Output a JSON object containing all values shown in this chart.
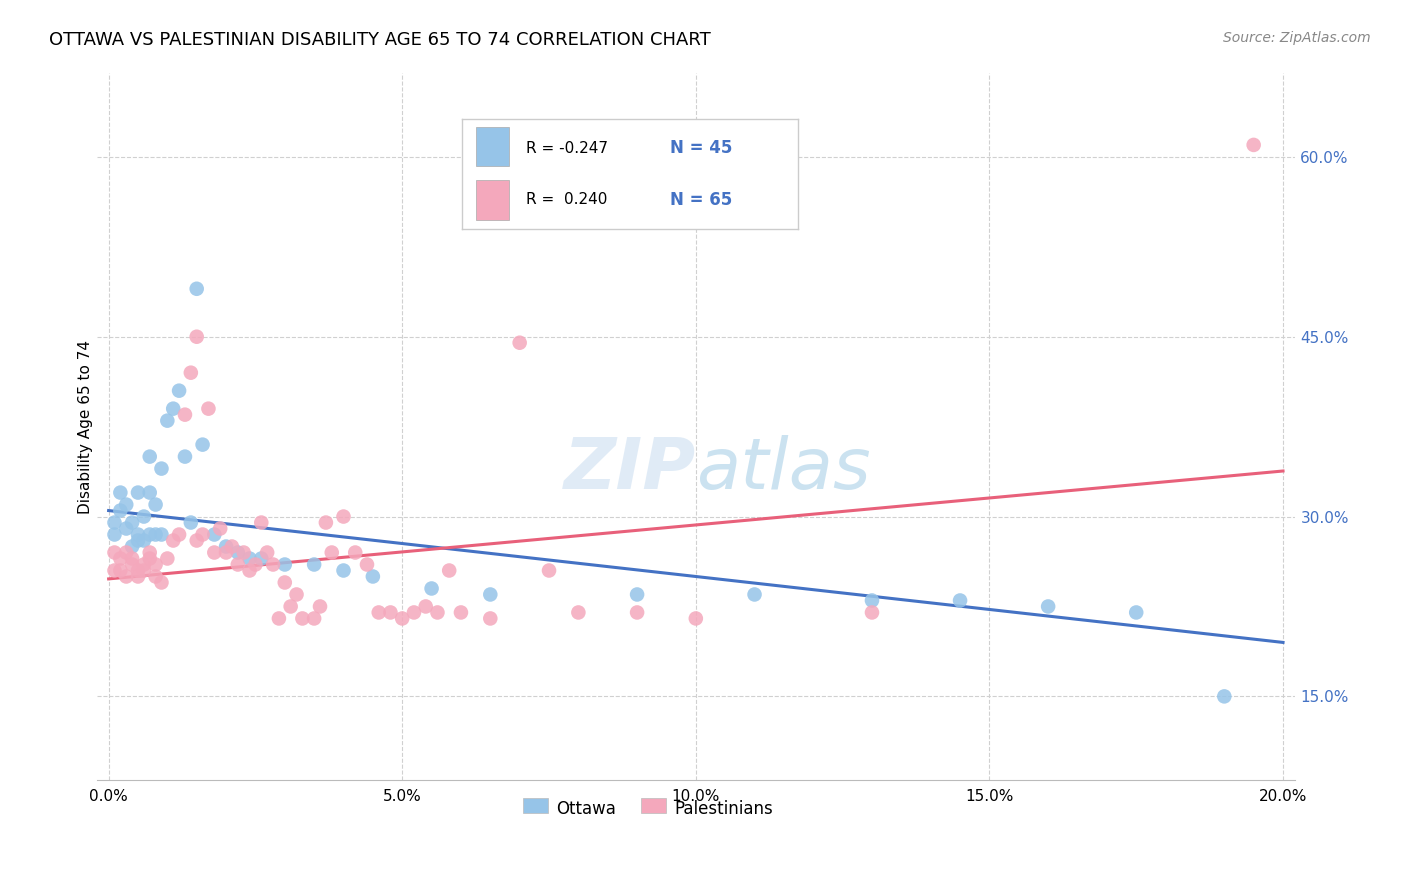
{
  "title": "OTTAWA VS PALESTINIAN DISABILITY AGE 65 TO 74 CORRELATION CHART",
  "source": "Source: ZipAtlas.com",
  "ylabel": "Disability Age 65 to 74",
  "xlim": [
    -0.002,
    0.202
  ],
  "ylim": [
    0.08,
    0.67
  ],
  "xticks": [
    0.0,
    0.05,
    0.1,
    0.15,
    0.2
  ],
  "ytick_vals": [
    0.15,
    0.3,
    0.45,
    0.6
  ],
  "ytick_labels": [
    "15.0%",
    "30.0%",
    "45.0%",
    "60.0%"
  ],
  "xtick_labels": [
    "0.0%",
    "5.0%",
    "10.0%",
    "15.0%",
    "20.0%"
  ],
  "ottawa_color": "#96C4E8",
  "palestinian_color": "#F4A8BC",
  "trend_ottawa_color": "#4472C4",
  "trend_palestinian_color": "#E8607A",
  "background_color": "#FFFFFF",
  "grid_color": "#D0D0D0",
  "ottawa_x": [
    0.001,
    0.001,
    0.002,
    0.002,
    0.003,
    0.003,
    0.004,
    0.004,
    0.005,
    0.005,
    0.005,
    0.006,
    0.006,
    0.007,
    0.007,
    0.007,
    0.008,
    0.008,
    0.009,
    0.009,
    0.01,
    0.011,
    0.012,
    0.013,
    0.014,
    0.015,
    0.016,
    0.018,
    0.02,
    0.022,
    0.024,
    0.026,
    0.03,
    0.035,
    0.04,
    0.045,
    0.055,
    0.065,
    0.09,
    0.11,
    0.13,
    0.145,
    0.16,
    0.175,
    0.19
  ],
  "ottawa_y": [
    0.295,
    0.285,
    0.305,
    0.32,
    0.31,
    0.29,
    0.295,
    0.275,
    0.285,
    0.28,
    0.32,
    0.28,
    0.3,
    0.285,
    0.35,
    0.32,
    0.31,
    0.285,
    0.285,
    0.34,
    0.38,
    0.39,
    0.405,
    0.35,
    0.295,
    0.49,
    0.36,
    0.285,
    0.275,
    0.27,
    0.265,
    0.265,
    0.26,
    0.26,
    0.255,
    0.25,
    0.24,
    0.235,
    0.235,
    0.235,
    0.23,
    0.23,
    0.225,
    0.22,
    0.15
  ],
  "palestinian_x": [
    0.001,
    0.001,
    0.002,
    0.002,
    0.003,
    0.003,
    0.004,
    0.004,
    0.005,
    0.005,
    0.006,
    0.006,
    0.007,
    0.007,
    0.008,
    0.008,
    0.009,
    0.01,
    0.011,
    0.012,
    0.013,
    0.014,
    0.015,
    0.015,
    0.016,
    0.017,
    0.018,
    0.019,
    0.02,
    0.021,
    0.022,
    0.023,
    0.024,
    0.025,
    0.026,
    0.027,
    0.028,
    0.029,
    0.03,
    0.031,
    0.032,
    0.033,
    0.035,
    0.036,
    0.037,
    0.038,
    0.04,
    0.042,
    0.044,
    0.046,
    0.048,
    0.05,
    0.052,
    0.054,
    0.056,
    0.058,
    0.06,
    0.065,
    0.07,
    0.075,
    0.08,
    0.09,
    0.1,
    0.13,
    0.195
  ],
  "palestinian_y": [
    0.27,
    0.255,
    0.265,
    0.255,
    0.27,
    0.25,
    0.26,
    0.265,
    0.255,
    0.25,
    0.26,
    0.255,
    0.27,
    0.265,
    0.26,
    0.25,
    0.245,
    0.265,
    0.28,
    0.285,
    0.385,
    0.42,
    0.45,
    0.28,
    0.285,
    0.39,
    0.27,
    0.29,
    0.27,
    0.275,
    0.26,
    0.27,
    0.255,
    0.26,
    0.295,
    0.27,
    0.26,
    0.215,
    0.245,
    0.225,
    0.235,
    0.215,
    0.215,
    0.225,
    0.295,
    0.27,
    0.3,
    0.27,
    0.26,
    0.22,
    0.22,
    0.215,
    0.22,
    0.225,
    0.22,
    0.255,
    0.22,
    0.215,
    0.445,
    0.255,
    0.22,
    0.22,
    0.215,
    0.22,
    0.61
  ],
  "trend_ottawa_x0": 0.0,
  "trend_ottawa_x1": 0.2,
  "trend_ottawa_y0": 0.305,
  "trend_ottawa_y1": 0.195,
  "trend_palestinian_x0": 0.0,
  "trend_palestinian_x1": 0.2,
  "trend_palestinian_y0": 0.248,
  "trend_palestinian_y1": 0.338
}
